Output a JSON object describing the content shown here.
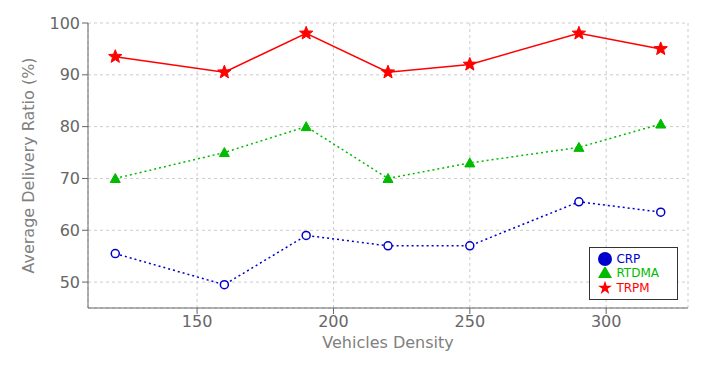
{
  "chart_data": {
    "type": "line",
    "x": [
      120,
      160,
      190,
      220,
      250,
      290,
      320
    ],
    "series": [
      {
        "name": "TRPM",
        "color": "#ff0000",
        "values": [
          93.5,
          90.5,
          98,
          90.5,
          92,
          98,
          95
        ],
        "marker": "star",
        "line_style": "solid"
      },
      {
        "name": "RTDMA",
        "color": "#00bb00",
        "values": [
          70,
          75,
          80,
          70,
          73,
          76,
          80.5
        ],
        "marker": "triangle",
        "line_style": "dotted"
      },
      {
        "name": "CRP",
        "color": "#0000cc",
        "values": [
          55.5,
          49.5,
          59,
          57,
          57,
          65.5,
          63.5
        ],
        "marker": "circle",
        "line_style": "dotted"
      }
    ],
    "xlabel": "Vehicles Density",
    "ylabel": "Average Delivery Ratio (%)",
    "xlim": [
      110,
      330
    ],
    "ylim": [
      45,
      100
    ],
    "xticks": [
      150,
      200,
      250,
      300
    ],
    "yticks": [
      50,
      60,
      70,
      80,
      90,
      100
    ],
    "grid": true,
    "legend": "lower right"
  }
}
